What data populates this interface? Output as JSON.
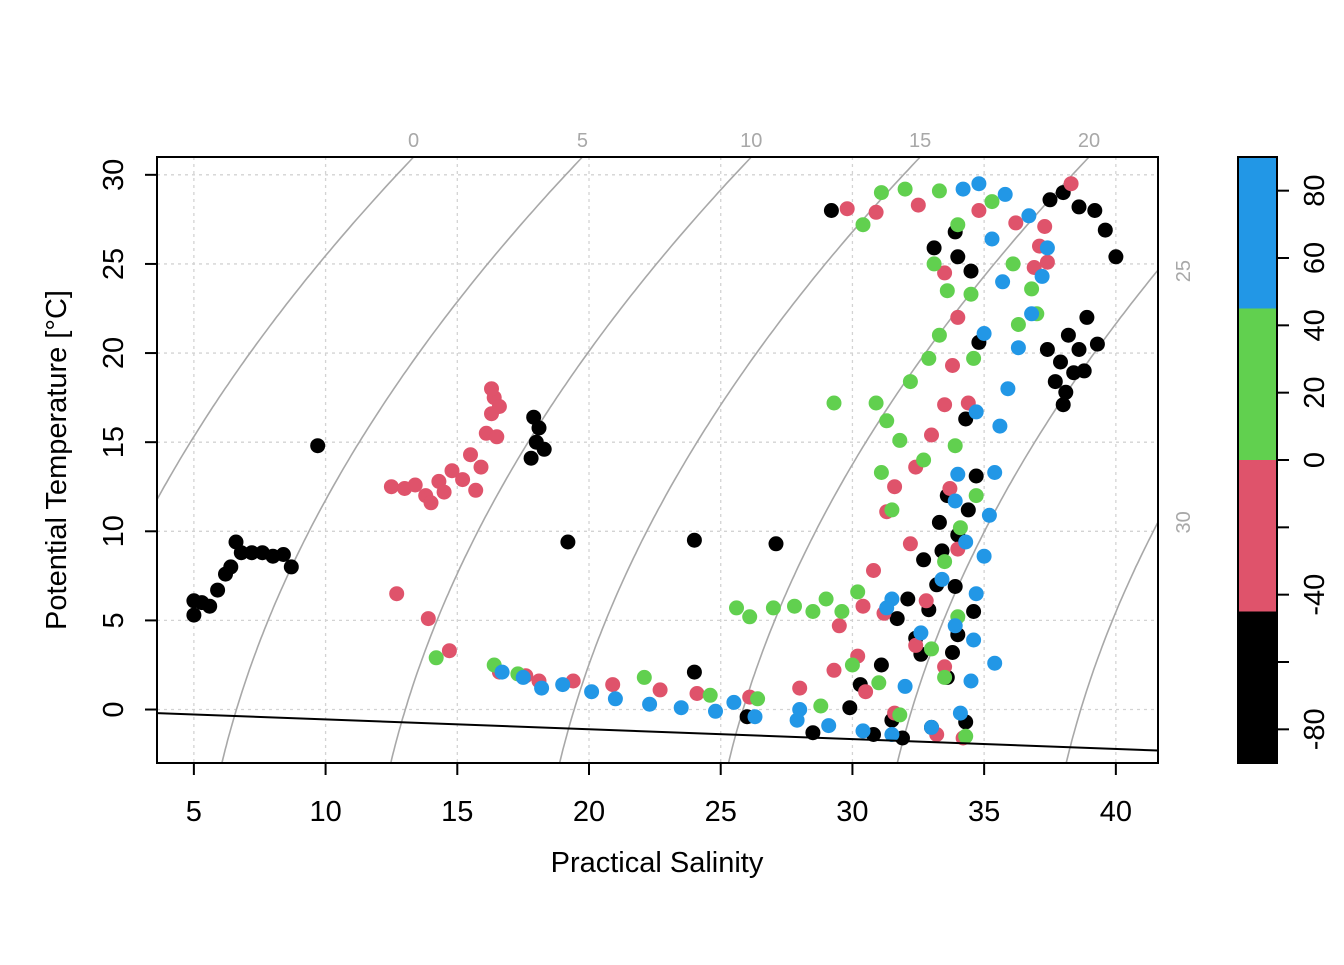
{
  "chart_data": {
    "type": "scatter",
    "xlabel": "Practical Salinity",
    "ylabel": "Potential Temperature [°C]",
    "xlim": [
      3.6,
      41.6
    ],
    "ylim": [
      -3.0,
      31.0
    ],
    "x_ticks": [
      "5",
      "10",
      "15",
      "20",
      "25",
      "30",
      "35",
      "40"
    ],
    "y_ticks": [
      "0",
      "5",
      "10",
      "15",
      "20",
      "25",
      "30"
    ],
    "grid": true,
    "freezing_line": [
      [
        3.6,
        -0.2
      ],
      [
        41.6,
        -2.3
      ]
    ],
    "isopycnals": [
      {
        "label": "0",
        "sigma": 0
      },
      {
        "label": "5",
        "sigma": 5
      },
      {
        "label": "10",
        "sigma": 10
      },
      {
        "label": "15",
        "sigma": 15
      },
      {
        "label": "20",
        "sigma": 20
      },
      {
        "label": "25",
        "sigma": 25
      },
      {
        "label": "30",
        "sigma": 30
      }
    ],
    "colorbar": {
      "breaks": [
        -90,
        -45,
        0,
        45,
        90
      ],
      "colors": [
        "#000000",
        "#df536b",
        "#61d04f",
        "#2297e6"
      ],
      "tick_values": [
        -80,
        -60,
        -40,
        -20,
        0,
        20,
        40,
        60,
        80
      ],
      "tick_labels": [
        "-80",
        "",
        "-40",
        "",
        "0",
        "20",
        "40",
        "60",
        "80"
      ]
    },
    "series": [
      {
        "color": "#000000",
        "points": [
          [
            5.0,
            5.3
          ],
          [
            5.0,
            6.1
          ],
          [
            5.3,
            6.0
          ],
          [
            5.6,
            5.8
          ],
          [
            5.9,
            6.7
          ],
          [
            6.2,
            7.6
          ],
          [
            6.4,
            8.0
          ],
          [
            6.6,
            9.4
          ],
          [
            6.8,
            8.8
          ],
          [
            7.2,
            8.8
          ],
          [
            7.6,
            8.8
          ],
          [
            8.0,
            8.6
          ],
          [
            8.4,
            8.7
          ],
          [
            8.7,
            8.0
          ],
          [
            9.7,
            14.8
          ],
          [
            17.9,
            16.4
          ],
          [
            18.1,
            15.8
          ],
          [
            18.0,
            15.0
          ],
          [
            17.8,
            14.1
          ],
          [
            18.3,
            14.6
          ],
          [
            19.2,
            9.4
          ],
          [
            24.0,
            9.5
          ],
          [
            27.1,
            9.3
          ],
          [
            24.0,
            2.1
          ],
          [
            29.2,
            28.0
          ],
          [
            33.1,
            25.9
          ],
          [
            34.0,
            25.4
          ],
          [
            33.9,
            26.8
          ],
          [
            34.5,
            24.6
          ],
          [
            37.5,
            28.6
          ],
          [
            38.0,
            29.0
          ],
          [
            38.6,
            28.2
          ],
          [
            39.2,
            28.0
          ],
          [
            39.6,
            26.9
          ],
          [
            40.0,
            25.4
          ],
          [
            38.2,
            21.0
          ],
          [
            38.6,
            20.2
          ],
          [
            37.9,
            19.5
          ],
          [
            38.4,
            18.9
          ],
          [
            38.1,
            17.8
          ],
          [
            37.4,
            20.2
          ],
          [
            38.9,
            22.0
          ],
          [
            39.3,
            20.5
          ],
          [
            37.7,
            18.4
          ],
          [
            38.8,
            19.0
          ],
          [
            38.0,
            17.1
          ],
          [
            33.6,
            12.0
          ],
          [
            33.3,
            10.5
          ],
          [
            34.0,
            9.8
          ],
          [
            32.7,
            8.4
          ],
          [
            33.2,
            7.0
          ],
          [
            32.1,
            6.2
          ],
          [
            31.7,
            5.1
          ],
          [
            32.4,
            4.0
          ],
          [
            33.8,
            3.2
          ],
          [
            31.1,
            2.5
          ],
          [
            30.3,
            1.4
          ],
          [
            29.9,
            0.1
          ],
          [
            31.5,
            -0.6
          ],
          [
            33.0,
            -1.0
          ],
          [
            34.3,
            -0.7
          ],
          [
            30.8,
            -1.4
          ],
          [
            28.5,
            -1.3
          ],
          [
            26.0,
            -0.4
          ],
          [
            33.9,
            6.9
          ],
          [
            34.6,
            5.5
          ],
          [
            34.8,
            20.6
          ],
          [
            34.3,
            16.3
          ],
          [
            34.7,
            13.1
          ],
          [
            34.4,
            11.2
          ],
          [
            32.6,
            3.1
          ],
          [
            31.9,
            -1.6
          ],
          [
            33.6,
            1.8
          ],
          [
            34.0,
            4.2
          ],
          [
            32.9,
            5.6
          ],
          [
            33.4,
            8.9
          ]
        ]
      },
      {
        "color": "#df536b",
        "points": [
          [
            12.5,
            12.5
          ],
          [
            13.0,
            12.4
          ],
          [
            13.4,
            12.6
          ],
          [
            13.8,
            12.0
          ],
          [
            14.0,
            11.6
          ],
          [
            14.3,
            12.8
          ],
          [
            14.8,
            13.4
          ],
          [
            15.2,
            12.9
          ],
          [
            15.7,
            12.3
          ],
          [
            15.9,
            13.6
          ],
          [
            16.1,
            15.5
          ],
          [
            16.5,
            15.3
          ],
          [
            16.3,
            16.6
          ],
          [
            16.4,
            17.5
          ],
          [
            16.3,
            18.0
          ],
          [
            16.6,
            17.0
          ],
          [
            15.5,
            14.3
          ],
          [
            14.5,
            12.2
          ],
          [
            12.7,
            6.5
          ],
          [
            13.9,
            5.1
          ],
          [
            14.7,
            3.3
          ],
          [
            16.6,
            2.1
          ],
          [
            17.6,
            1.9
          ],
          [
            18.1,
            1.6
          ],
          [
            19.4,
            1.6
          ],
          [
            20.9,
            1.4
          ],
          [
            22.7,
            1.1
          ],
          [
            24.1,
            0.9
          ],
          [
            26.1,
            0.7
          ],
          [
            28.0,
            1.2
          ],
          [
            29.3,
            2.2
          ],
          [
            30.5,
            1.0
          ],
          [
            31.6,
            -0.2
          ],
          [
            33.2,
            -1.4
          ],
          [
            34.2,
            -1.6
          ],
          [
            29.8,
            28.1
          ],
          [
            30.9,
            27.9
          ],
          [
            32.5,
            28.3
          ],
          [
            34.8,
            28.0
          ],
          [
            36.2,
            27.3
          ],
          [
            37.3,
            27.1
          ],
          [
            38.3,
            29.5
          ],
          [
            37.1,
            26.0
          ],
          [
            36.9,
            24.8
          ],
          [
            37.4,
            25.1
          ],
          [
            33.5,
            24.5
          ],
          [
            34.0,
            22.0
          ],
          [
            33.8,
            19.3
          ],
          [
            33.5,
            17.1
          ],
          [
            33.0,
            15.4
          ],
          [
            32.4,
            13.6
          ],
          [
            31.6,
            12.5
          ],
          [
            31.3,
            11.1
          ],
          [
            32.2,
            9.3
          ],
          [
            30.8,
            7.8
          ],
          [
            31.2,
            5.4
          ],
          [
            32.4,
            3.6
          ],
          [
            33.5,
            2.4
          ],
          [
            30.2,
            3.0
          ],
          [
            29.5,
            4.7
          ],
          [
            34.0,
            9.0
          ],
          [
            33.7,
            12.4
          ],
          [
            34.4,
            17.2
          ],
          [
            32.8,
            6.1
          ],
          [
            30.4,
            5.8
          ]
        ]
      },
      {
        "color": "#61d04f",
        "points": [
          [
            14.2,
            2.9
          ],
          [
            16.4,
            2.5
          ],
          [
            25.6,
            5.7
          ],
          [
            26.1,
            5.2
          ],
          [
            27.0,
            5.7
          ],
          [
            27.8,
            5.8
          ],
          [
            28.5,
            5.5
          ],
          [
            29.0,
            6.2
          ],
          [
            29.6,
            5.5
          ],
          [
            30.2,
            6.6
          ],
          [
            29.3,
            17.2
          ],
          [
            30.9,
            17.2
          ],
          [
            31.3,
            16.2
          ],
          [
            31.8,
            15.1
          ],
          [
            31.1,
            13.3
          ],
          [
            31.5,
            11.2
          ],
          [
            32.2,
            18.4
          ],
          [
            32.9,
            19.7
          ],
          [
            33.3,
            21.0
          ],
          [
            33.6,
            23.5
          ],
          [
            34.0,
            27.2
          ],
          [
            31.1,
            29.0
          ],
          [
            32.0,
            29.2
          ],
          [
            33.3,
            29.1
          ],
          [
            35.3,
            28.5
          ],
          [
            36.1,
            25.0
          ],
          [
            36.8,
            23.6
          ],
          [
            37.0,
            22.2
          ],
          [
            36.3,
            21.6
          ],
          [
            34.6,
            19.7
          ],
          [
            33.9,
            14.8
          ],
          [
            34.1,
            10.2
          ],
          [
            33.5,
            8.3
          ],
          [
            34.0,
            5.2
          ],
          [
            33.0,
            3.4
          ],
          [
            33.5,
            1.8
          ],
          [
            34.3,
            -1.5
          ],
          [
            31.8,
            -0.3
          ],
          [
            28.8,
            0.2
          ],
          [
            26.4,
            0.6
          ],
          [
            24.6,
            0.8
          ],
          [
            22.1,
            1.8
          ],
          [
            17.3,
            2.0
          ],
          [
            30.0,
            2.5
          ],
          [
            31.0,
            1.5
          ],
          [
            32.7,
            14.0
          ],
          [
            34.5,
            23.3
          ],
          [
            33.1,
            25.0
          ],
          [
            30.4,
            27.2
          ],
          [
            34.7,
            12.0
          ]
        ]
      },
      {
        "color": "#2297e6",
        "points": [
          [
            16.7,
            2.1
          ],
          [
            17.5,
            1.8
          ],
          [
            18.2,
            1.2
          ],
          [
            19.0,
            1.4
          ],
          [
            20.1,
            1.0
          ],
          [
            21.0,
            0.6
          ],
          [
            22.3,
            0.3
          ],
          [
            23.5,
            0.1
          ],
          [
            24.8,
            -0.1
          ],
          [
            26.3,
            -0.4
          ],
          [
            27.9,
            -0.6
          ],
          [
            29.1,
            -0.9
          ],
          [
            30.4,
            -1.2
          ],
          [
            31.5,
            -1.4
          ],
          [
            33.0,
            -1.0
          ],
          [
            34.1,
            -0.2
          ],
          [
            34.5,
            1.6
          ],
          [
            34.6,
            3.9
          ],
          [
            34.7,
            6.5
          ],
          [
            35.0,
            8.6
          ],
          [
            35.2,
            10.9
          ],
          [
            35.4,
            13.3
          ],
          [
            35.6,
            15.9
          ],
          [
            35.9,
            18.0
          ],
          [
            36.3,
            20.3
          ],
          [
            36.8,
            22.2
          ],
          [
            37.2,
            24.3
          ],
          [
            37.4,
            25.9
          ],
          [
            36.7,
            27.7
          ],
          [
            35.8,
            28.9
          ],
          [
            34.8,
            29.5
          ],
          [
            34.2,
            29.2
          ],
          [
            35.3,
            26.4
          ],
          [
            35.7,
            24.0
          ],
          [
            35.0,
            21.1
          ],
          [
            34.7,
            16.7
          ],
          [
            33.9,
            11.7
          ],
          [
            33.4,
            7.3
          ],
          [
            31.5,
            6.2
          ],
          [
            31.3,
            5.7
          ],
          [
            32.6,
            4.3
          ],
          [
            33.9,
            4.7
          ],
          [
            34.3,
            9.4
          ],
          [
            34.0,
            13.2
          ],
          [
            35.4,
            2.6
          ],
          [
            32.0,
            1.3
          ],
          [
            28.0,
            0.0
          ],
          [
            25.5,
            0.4
          ]
        ]
      }
    ]
  }
}
